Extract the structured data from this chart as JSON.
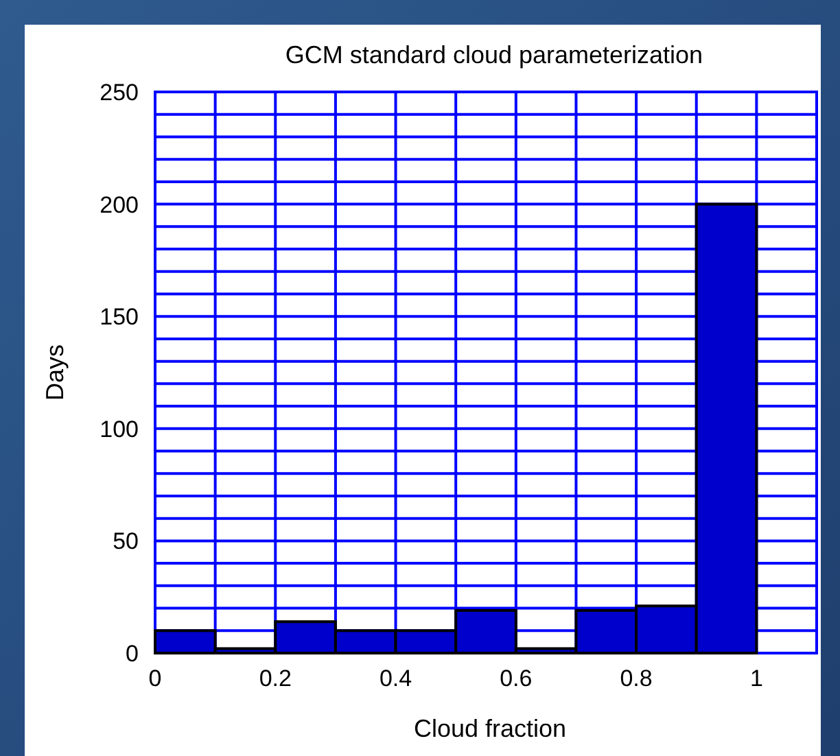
{
  "chart_data": {
    "type": "histogram",
    "title": "GCM standard cloud parameterization",
    "xlabel": "Cloud fraction",
    "ylabel": "Days",
    "bins": [
      0,
      0.1,
      0.2,
      0.3,
      0.4,
      0.5,
      0.6,
      0.7,
      0.8,
      0.9,
      1.0,
      1.1
    ],
    "values": [
      10,
      2,
      14,
      10,
      10,
      19,
      2,
      19,
      21,
      200,
      0
    ],
    "color": "#0000cc",
    "xlim": [
      0,
      1.1
    ],
    "xticks": [
      0,
      {
        "value": 0.1,
        "label": null
      },
      {
        "value": 0.2,
        "label": "0.2"
      },
      {
        "value": 0.3,
        "label": null
      },
      {
        "value": 0.4,
        "label": "0.4"
      },
      {
        "value": 0.5,
        "label": null
      },
      {
        "value": 0.6,
        "label": "0.6"
      },
      {
        "value": 0.7,
        "label": null
      },
      {
        "value": 0.8,
        "label": "0.8"
      },
      {
        "value": 0.9,
        "label": null
      },
      1,
      {
        "value": 1.1,
        "label": null
      }
    ],
    "ylim": [
      0,
      250
    ],
    "yticks": [
      0,
      {
        "value": 10,
        "label": null
      },
      {
        "value": 20,
        "label": null
      },
      {
        "value": 30,
        "label": null
      },
      {
        "value": 40,
        "label": null
      },
      50,
      {
        "value": 60,
        "label": null
      },
      {
        "value": 70,
        "label": null
      },
      {
        "value": 80,
        "label": null
      },
      {
        "value": 90,
        "label": null
      },
      100,
      {
        "value": 110,
        "label": null
      },
      {
        "value": 120,
        "label": null
      },
      {
        "value": 130,
        "label": null
      },
      {
        "value": 140,
        "label": null
      },
      150,
      {
        "value": 160,
        "label": null
      },
      {
        "value": 170,
        "label": null
      },
      {
        "value": 180,
        "label": null
      },
      {
        "value": 190,
        "label": null
      },
      200,
      {
        "value": 210,
        "label": null
      },
      {
        "value": 220,
        "label": null
      },
      {
        "value": 230,
        "label": null
      },
      {
        "value": 240,
        "label": null
      },
      250
    ],
    "grid": true
  }
}
